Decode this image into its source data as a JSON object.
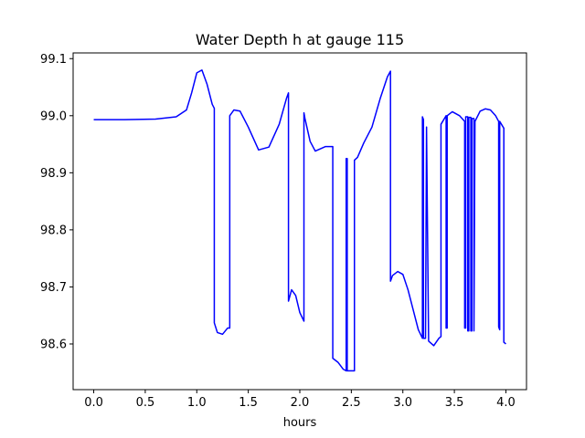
{
  "chart_data": {
    "type": "line",
    "title": "Water Depth h at gauge 115",
    "xlabel": "hours",
    "ylabel": "",
    "xlim": [
      -0.2,
      4.2
    ],
    "ylim": [
      98.52,
      99.11
    ],
    "grid": false,
    "xticks": [
      0.0,
      0.5,
      1.0,
      1.5,
      2.0,
      2.5,
      3.0,
      3.5,
      4.0
    ],
    "xtick_labels": [
      "0.0",
      "0.5",
      "1.0",
      "1.5",
      "2.0",
      "2.5",
      "3.0",
      "3.5",
      "4.0"
    ],
    "yticks": [
      98.6,
      98.7,
      98.8,
      98.9,
      99.0,
      99.1
    ],
    "ytick_labels": [
      "98.6",
      "98.7",
      "98.8",
      "98.9",
      "99.0",
      "99.1"
    ],
    "series": [
      {
        "color": "#0000ff",
        "x": [
          0.0,
          0.3,
          0.6,
          0.8,
          0.9,
          0.95,
          1.0,
          1.05,
          1.1,
          1.15,
          1.17,
          1.17,
          1.2,
          1.25,
          1.3,
          1.32,
          1.32,
          1.36,
          1.42,
          1.5,
          1.6,
          1.7,
          1.8,
          1.87,
          1.89,
          1.89,
          1.92,
          1.96,
          2.0,
          2.04,
          2.04,
          2.05,
          2.1,
          2.15,
          2.2,
          2.25,
          2.3,
          2.32,
          2.32,
          2.37,
          2.42,
          2.45,
          2.45,
          2.46,
          2.46,
          2.49,
          2.53,
          2.53,
          2.56,
          2.62,
          2.7,
          2.78,
          2.85,
          2.88,
          2.88,
          2.9,
          2.95,
          3.0,
          3.05,
          3.1,
          3.15,
          3.19,
          3.19,
          3.2,
          3.2,
          3.22,
          3.23,
          3.23,
          3.25,
          3.3,
          3.35,
          3.37,
          3.37,
          3.42,
          3.42,
          3.43,
          3.43,
          3.48,
          3.55,
          3.6,
          3.6,
          3.61,
          3.61,
          3.63,
          3.63,
          3.64,
          3.64,
          3.66,
          3.66,
          3.67,
          3.67,
          3.69,
          3.69,
          3.7,
          3.75,
          3.8,
          3.85,
          3.9,
          3.93,
          3.93,
          3.94,
          3.94,
          3.98,
          3.98,
          4.0
        ],
        "y": [
          98.993,
          98.993,
          98.994,
          98.998,
          99.01,
          99.04,
          99.075,
          99.08,
          99.055,
          99.02,
          99.013,
          98.637,
          98.62,
          98.617,
          98.628,
          98.628,
          99.0,
          99.01,
          99.008,
          98.98,
          98.94,
          98.945,
          98.985,
          99.03,
          99.04,
          98.675,
          98.695,
          98.685,
          98.655,
          98.64,
          99.005,
          98.995,
          98.955,
          98.938,
          98.942,
          98.946,
          98.946,
          98.946,
          98.575,
          98.568,
          98.556,
          98.553,
          98.925,
          98.925,
          98.553,
          98.553,
          98.553,
          98.922,
          98.927,
          98.952,
          98.98,
          99.03,
          99.068,
          99.078,
          98.71,
          98.72,
          98.727,
          98.722,
          98.695,
          98.66,
          98.625,
          98.61,
          98.998,
          98.993,
          98.61,
          98.61,
          98.98,
          98.975,
          98.605,
          98.597,
          98.61,
          98.613,
          98.985,
          99.0,
          98.628,
          98.628,
          99.0,
          99.007,
          99.0,
          98.99,
          98.628,
          98.628,
          98.998,
          98.998,
          98.623,
          98.623,
          98.997,
          98.997,
          98.623,
          98.623,
          98.995,
          98.995,
          98.623,
          98.99,
          99.008,
          99.012,
          99.01,
          99.0,
          98.99,
          98.63,
          98.625,
          98.99,
          98.978,
          98.603,
          98.6
        ]
      }
    ]
  }
}
